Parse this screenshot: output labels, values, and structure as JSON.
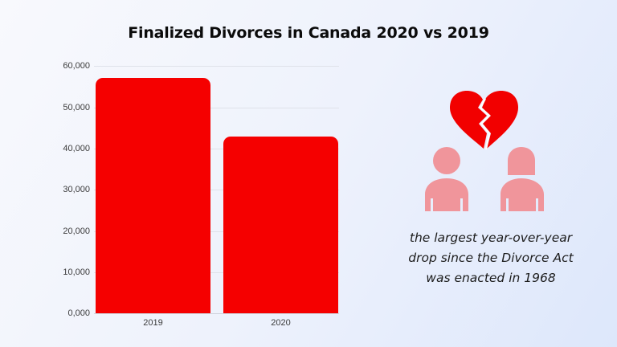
{
  "title": "Finalized Divorces in Canada 2020 vs 2019",
  "colors": {
    "bar": "#f50000",
    "heart": "#f20000",
    "people": "#f0959b",
    "gridline": "#dfe2ea",
    "background_start": "#f8f9fd",
    "background_end": "#dde7fb"
  },
  "chart_data": {
    "type": "bar",
    "title": "Finalized Divorces in Canada 2020 vs 2019",
    "categories": [
      "2019",
      "2020"
    ],
    "values": [
      57000,
      42900
    ],
    "xlabel": "",
    "ylabel": "",
    "ylim": [
      0,
      60000
    ],
    "yticks": [
      0,
      10000,
      20000,
      30000,
      40000,
      50000,
      60000
    ],
    "ytick_labels": [
      "0,000",
      "10,000",
      "20,000",
      "30,000",
      "40,000",
      "50,000",
      "60,000"
    ],
    "grid": true,
    "legend": null
  },
  "axis": {
    "y_labels": [
      "60,000",
      "50,000",
      "40,000",
      "30,000",
      "20,000",
      "10,000",
      "0,000"
    ],
    "x_labels": [
      "2019",
      "2020"
    ]
  },
  "illustration": {
    "icons": [
      "broken-heart-icon",
      "man-icon",
      "woman-icon"
    ]
  },
  "note": {
    "lines": [
      "the largest year-over-year",
      "drop since the Divorce Act",
      "was enacted in 1968"
    ]
  }
}
